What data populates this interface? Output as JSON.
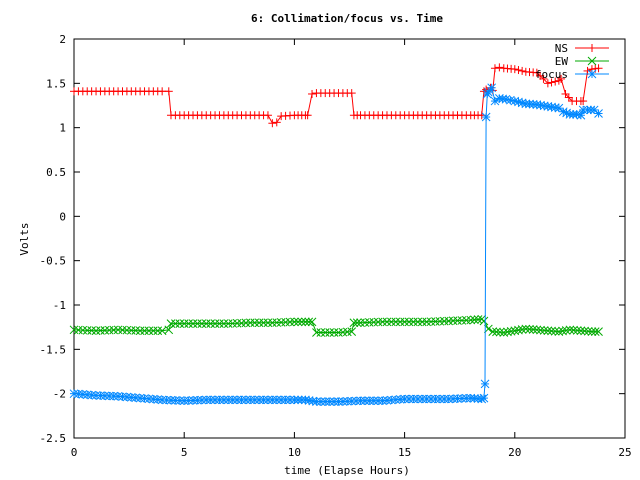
{
  "chart_data": {
    "type": "line",
    "title": "6: Collimation/focus vs. Time",
    "xlabel": "time (Elapse Hours)",
    "ylabel": "Volts",
    "xlim": [
      0,
      25
    ],
    "ylim": [
      -2.5,
      2
    ],
    "xticks": [
      0,
      5,
      10,
      15,
      20,
      25
    ],
    "yticks": [
      -2.5,
      -2,
      -1.5,
      -1,
      -0.5,
      0,
      0.5,
      1,
      1.5,
      2
    ],
    "legend_position": "top-right",
    "grid": false,
    "series": [
      {
        "name": "NS",
        "color": "#ff0000",
        "marker": "plus",
        "x": [
          0,
          1,
          2,
          3,
          4,
          4.3,
          4.4,
          5,
          6,
          7,
          8,
          8.8,
          9.0,
          9.2,
          9.4,
          10,
          10.5,
          10.6,
          10.8,
          11,
          12,
          12.6,
          12.7,
          13,
          14,
          15,
          16,
          17,
          18,
          18.5,
          18.6,
          18.7,
          18.9,
          19.0,
          19.1,
          19.3,
          19.5,
          20,
          20.5,
          21,
          21.3,
          21.5,
          22,
          22.1,
          22.3,
          22.6,
          23,
          23.1,
          23.3,
          23.5,
          23.8
        ],
        "values": [
          1.41,
          1.41,
          1.41,
          1.41,
          1.41,
          1.41,
          1.14,
          1.14,
          1.14,
          1.14,
          1.14,
          1.14,
          1.05,
          1.06,
          1.13,
          1.14,
          1.14,
          1.14,
          1.38,
          1.39,
          1.39,
          1.39,
          1.14,
          1.14,
          1.14,
          1.14,
          1.14,
          1.14,
          1.14,
          1.14,
          1.41,
          1.43,
          1.45,
          1.42,
          1.67,
          1.68,
          1.67,
          1.66,
          1.63,
          1.62,
          1.55,
          1.5,
          1.53,
          1.55,
          1.38,
          1.3,
          1.3,
          1.3,
          1.64,
          1.66,
          1.67
        ]
      },
      {
        "name": "EW",
        "color": "#00aa00",
        "marker": "x",
        "x": [
          0,
          1,
          2,
          3,
          4,
          4.3,
          4.4,
          5,
          6,
          7,
          8,
          9,
          10,
          10.5,
          10.8,
          11,
          12,
          12.6,
          12.7,
          13,
          14,
          15,
          16,
          17,
          18,
          18.5,
          18.6,
          18.8,
          19.0,
          19.5,
          20,
          20.5,
          21,
          21.5,
          22,
          22.5,
          23,
          23.5,
          23.8
        ],
        "values": [
          -1.28,
          -1.29,
          -1.28,
          -1.29,
          -1.29,
          -1.28,
          -1.21,
          -1.21,
          -1.21,
          -1.21,
          -1.2,
          -1.2,
          -1.19,
          -1.19,
          -1.19,
          -1.31,
          -1.31,
          -1.3,
          -1.2,
          -1.2,
          -1.19,
          -1.19,
          -1.19,
          -1.18,
          -1.17,
          -1.16,
          -1.18,
          -1.27,
          -1.3,
          -1.31,
          -1.29,
          -1.27,
          -1.28,
          -1.29,
          -1.3,
          -1.28,
          -1.29,
          -1.3,
          -1.3
        ]
      },
      {
        "name": "focus",
        "color": "#0088ff",
        "marker": "star",
        "x": [
          0,
          1,
          2,
          3,
          4,
          5,
          6,
          7,
          8,
          9,
          10,
          10.5,
          11,
          12,
          13,
          14,
          15,
          16,
          17,
          18,
          18.5,
          18.6,
          18.65,
          18.7,
          18.75,
          18.8,
          18.95,
          19.1,
          19.3,
          19.6,
          20,
          20.5,
          21,
          21.5,
          22,
          22.2,
          22.5,
          22.8,
          23,
          23.1,
          23.3,
          23.6,
          23.8
        ],
        "values": [
          -2.0,
          -2.02,
          -2.03,
          -2.05,
          -2.07,
          -2.08,
          -2.07,
          -2.07,
          -2.07,
          -2.07,
          -2.07,
          -2.07,
          -2.09,
          -2.09,
          -2.08,
          -2.08,
          -2.06,
          -2.06,
          -2.06,
          -2.05,
          -2.06,
          -2.05,
          -1.89,
          1.12,
          1.38,
          1.4,
          1.45,
          1.3,
          1.33,
          1.32,
          1.3,
          1.27,
          1.26,
          1.24,
          1.22,
          1.18,
          1.15,
          1.15,
          1.14,
          1.2,
          1.2,
          1.2,
          1.16
        ]
      }
    ]
  }
}
